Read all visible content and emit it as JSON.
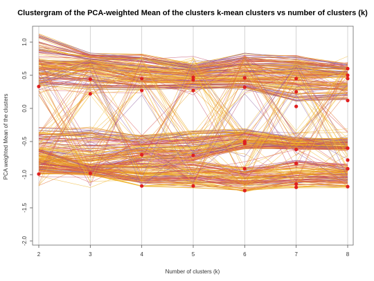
{
  "chart_data": {
    "type": "line",
    "title": "Clustergram of the PCA-weighted Mean of the clusters k-mean clusters vs number of clusters (k)",
    "xlabel": "Number of clusters (k)",
    "ylabel": "PCA weighted Mean of the clusters",
    "x": [
      2,
      3,
      4,
      5,
      6,
      7,
      8
    ],
    "xlim": [
      2,
      8
    ],
    "ylim": [
      -2.0,
      1.0
    ],
    "x_ticks": [
      "2",
      "3",
      "4",
      "5",
      "6",
      "7",
      "8"
    ],
    "y_ticks": [
      "-2.0",
      "-1.5",
      "-1.0",
      "-0.5",
      "0.0",
      "0.5",
      "1.0"
    ],
    "y_tick_values": [
      -2.0,
      -1.5,
      -1.0,
      -0.5,
      0.0,
      0.5,
      1.0
    ],
    "grid": "vertical",
    "line_colors": [
      "#e8a020",
      "#f0b428",
      "#e07030",
      "#d85050",
      "#c04868",
      "#9060a0",
      "#f2c040"
    ],
    "point_color": "#e02020",
    "cluster_centers": [
      {
        "k": 2,
        "y": [
          0.33,
          -0.99
        ]
      },
      {
        "k": 3,
        "y": [
          0.44,
          0.22,
          -0.98
        ]
      },
      {
        "k": 4,
        "y": [
          0.45,
          0.27,
          -0.7,
          -1.17
        ]
      },
      {
        "k": 5,
        "y": [
          0.47,
          0.43,
          0.27,
          -0.71,
          -1.17
        ]
      },
      {
        "k": 6,
        "y": [
          0.46,
          0.32,
          -0.5,
          -0.53,
          -0.91,
          -1.24
        ]
      },
      {
        "k": 7,
        "y": [
          0.45,
          0.25,
          0.03,
          -0.62,
          -0.83,
          -1.14,
          -1.19
        ]
      },
      {
        "k": 8,
        "y": [
          0.6,
          0.5,
          0.45,
          0.12,
          -0.6,
          -0.78,
          -0.91,
          -1.18
        ]
      }
    ],
    "bundles": [
      {
        "count": 70,
        "start": [
          0.35,
          1.15
        ],
        "path": [
          [
            0.62,
            0.82
          ],
          [
            0.46,
            0.82
          ],
          [
            0.45,
            0.66
          ],
          [
            0.45,
            0.82
          ],
          [
            0.45,
            0.78
          ],
          [
            0.48,
            0.66
          ]
        ],
        "spread": [
          0.04,
          0.04,
          0.04,
          0.04,
          0.04,
          0.04
        ]
      },
      {
        "count": 40,
        "start": [
          0.35,
          0.75
        ],
        "path": [
          [
            0.3,
            0.66
          ],
          [
            0.3,
            0.45
          ],
          [
            0.3,
            0.45
          ],
          [
            0.3,
            0.45
          ],
          [
            0.1,
            0.45
          ],
          [
            0.15,
            0.4
          ]
        ],
        "spread": [
          0.04,
          0.04,
          0.04,
          0.04,
          0.04,
          0.04
        ]
      },
      {
        "count": 80,
        "start": [
          -0.28,
          -0.95
        ],
        "path": [
          [
            -0.28,
            -0.98
          ],
          [
            -0.4,
            -0.78
          ],
          [
            -0.35,
            -0.78
          ],
          [
            -0.32,
            -0.6
          ],
          [
            -0.45,
            -0.6
          ],
          [
            -0.45,
            -0.62
          ]
        ],
        "spread": [
          0.04,
          0.04,
          0.04,
          0.04,
          0.04,
          0.04
        ]
      },
      {
        "count": 80,
        "start": [
          -0.6,
          -1.0
        ],
        "path": [
          [
            -0.85,
            -1.0
          ],
          [
            -0.8,
            -1.18
          ],
          [
            -0.8,
            -1.18
          ],
          [
            -0.88,
            -1.25
          ],
          [
            -0.8,
            -1.18
          ],
          [
            -0.85,
            -1.18
          ]
        ],
        "spread": [
          0.04,
          0.04,
          0.04,
          0.04,
          0.04,
          0.04
        ]
      }
    ]
  }
}
